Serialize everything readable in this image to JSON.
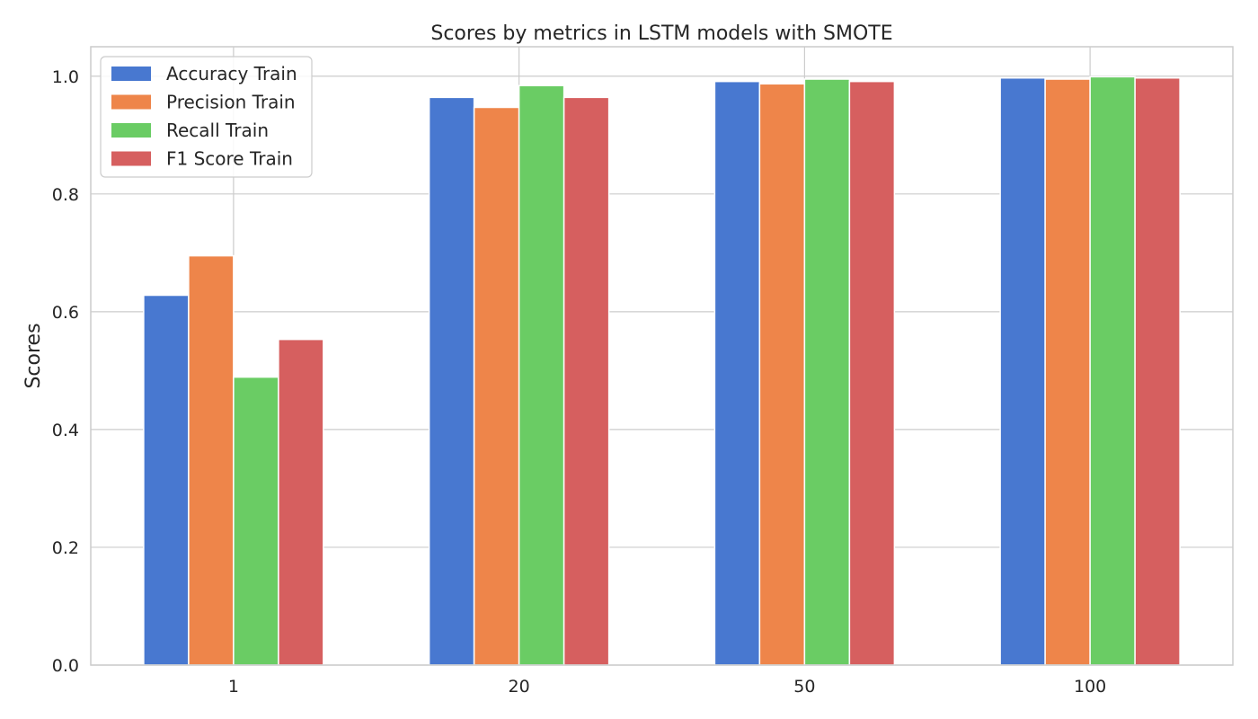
{
  "chart_data": {
    "type": "bar",
    "title": "Scores by metrics in LSTM models with SMOTE",
    "xlabel": "",
    "ylabel": "Scores",
    "categories": [
      "1",
      "20",
      "50",
      "100"
    ],
    "ylim": [
      0,
      1.05
    ],
    "yticks": [
      0.0,
      0.2,
      0.4,
      0.6,
      0.8,
      1.0
    ],
    "ytick_labels": [
      "0.0",
      "0.2",
      "0.4",
      "0.6",
      "0.8",
      "1.0"
    ],
    "grid": true,
    "legend_position": "top-left",
    "series": [
      {
        "name": "Accuracy Train",
        "color": "#4878d0",
        "values": [
          0.628,
          0.964,
          0.991,
          0.997
        ]
      },
      {
        "name": "Precision Train",
        "color": "#ee854a",
        "values": [
          0.695,
          0.947,
          0.987,
          0.995
        ]
      },
      {
        "name": "Recall Train",
        "color": "#6acc64",
        "values": [
          0.489,
          0.984,
          0.995,
          0.999
        ]
      },
      {
        "name": "F1 Score Train",
        "color": "#d65f5f",
        "values": [
          0.553,
          0.964,
          0.991,
          0.997
        ]
      }
    ]
  }
}
